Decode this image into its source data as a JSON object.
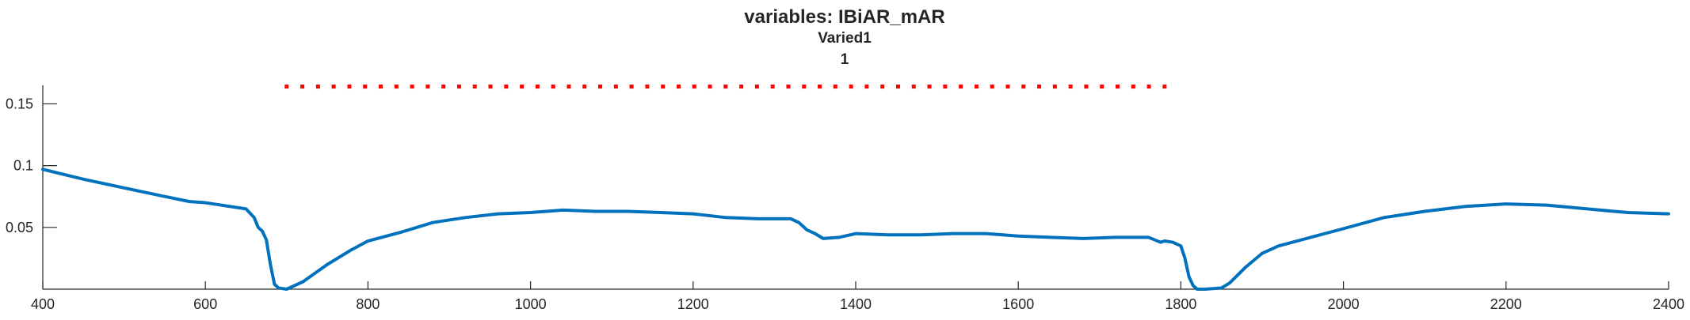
{
  "chart_data": {
    "type": "line",
    "title": "variables: IBiAR_mAR",
    "subtitle_lines": [
      "Varied1",
      "1"
    ],
    "xlabel": "",
    "ylabel": "",
    "xlim": [
      400,
      2400
    ],
    "ylim": [
      0,
      0.165
    ],
    "xticks": [
      400,
      600,
      800,
      1000,
      1200,
      1400,
      1600,
      1800,
      2000,
      2200,
      2400
    ],
    "xtick_labels": [
      "400",
      "600",
      "800",
      "1000",
      "1200",
      "1400",
      "1600",
      "1800",
      "2000",
      "2200",
      "2400"
    ],
    "yticks": [
      0.05,
      0.1,
      0.15
    ],
    "ytick_labels": [
      "0.05",
      "0.1",
      "0.15"
    ],
    "grid": false,
    "series": [
      {
        "color": "#0072BD",
        "style": "solid",
        "x": [
          400,
          450,
          500,
          550,
          580,
          600,
          620,
          650,
          660,
          665,
          670,
          675,
          680,
          685,
          690,
          700,
          720,
          750,
          780,
          800,
          840,
          880,
          920,
          960,
          1000,
          1040,
          1080,
          1120,
          1160,
          1200,
          1240,
          1280,
          1320,
          1330,
          1340,
          1350,
          1360,
          1380,
          1400,
          1440,
          1480,
          1520,
          1560,
          1600,
          1640,
          1680,
          1720,
          1760,
          1775,
          1780,
          1790,
          1800,
          1805,
          1810,
          1815,
          1820,
          1830,
          1850,
          1860,
          1880,
          1900,
          1920,
          1960,
          2000,
          2050,
          2100,
          2150,
          2200,
          2250,
          2300,
          2350,
          2400
        ],
        "y": [
          0.097,
          0.089,
          0.082,
          0.075,
          0.071,
          0.07,
          0.068,
          0.065,
          0.058,
          0.05,
          0.047,
          0.04,
          0.02,
          0.004,
          0.001,
          0.0,
          0.006,
          0.02,
          0.032,
          0.039,
          0.046,
          0.054,
          0.058,
          0.061,
          0.062,
          0.064,
          0.063,
          0.063,
          0.062,
          0.061,
          0.058,
          0.057,
          0.057,
          0.054,
          0.048,
          0.045,
          0.041,
          0.042,
          0.045,
          0.044,
          0.044,
          0.045,
          0.045,
          0.043,
          0.042,
          0.041,
          0.042,
          0.042,
          0.038,
          0.039,
          0.038,
          0.035,
          0.025,
          0.01,
          0.003,
          0.0,
          0.0,
          0.001,
          0.005,
          0.018,
          0.029,
          0.035,
          0.042,
          0.049,
          0.058,
          0.063,
          0.067,
          0.069,
          0.068,
          0.065,
          0.062,
          0.061
        ]
      },
      {
        "color": "#FF0000",
        "style": "dotted",
        "x": [
          700,
          1780
        ],
        "y": [
          0.164,
          0.164
        ]
      }
    ]
  }
}
